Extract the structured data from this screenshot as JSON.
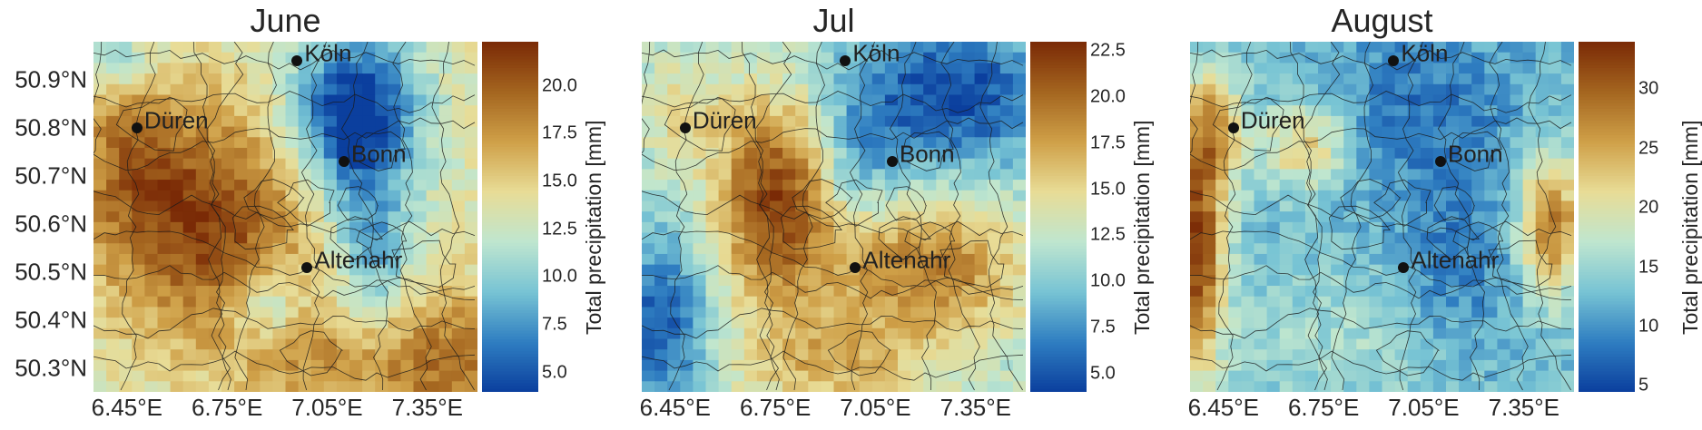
{
  "lon_ticks": [
    "6.45°E",
    "6.75°E",
    "7.05°E",
    "7.35°E"
  ],
  "lat_ticks": [
    "50.9°N",
    "50.8°N",
    "50.7°N",
    "50.6°N",
    "50.5°N",
    "50.4°N",
    "50.3°N"
  ],
  "colorbar_label": "Total precipitation [mm]",
  "cities": [
    {
      "name": "Köln",
      "lon": 6.96,
      "lat": 50.94
    },
    {
      "name": "Düren",
      "lon": 6.48,
      "lat": 50.8
    },
    {
      "name": "Bonn",
      "lon": 7.1,
      "lat": 50.73
    },
    {
      "name": "Altenahr",
      "lon": 6.99,
      "lat": 50.51
    }
  ],
  "colormap": {
    "name": "RdYlBu-like (blue low, brown high)",
    "stops": [
      "#0b3f9e",
      "#2f7ec1",
      "#78c4d4",
      "#bfe6cf",
      "#e8dc96",
      "#cfa048",
      "#a4651f",
      "#7a2a06"
    ]
  },
  "panels": [
    {
      "title": "June",
      "colorbar": {
        "min": 4.0,
        "max": 22.3,
        "ticks": [
          "5.0",
          "7.5",
          "10.0",
          "12.5",
          "15.0",
          "17.5",
          "20.0"
        ]
      },
      "pattern": "wet west-center, dry northeast",
      "show_lat_ticks": true
    },
    {
      "title": "Jul",
      "colorbar": {
        "min": 4.0,
        "max": 23.0,
        "ticks": [
          "5.0",
          "7.5",
          "10.0",
          "12.5",
          "15.0",
          "17.5",
          "20.0",
          "22.5"
        ]
      },
      "pattern": "wet west-center and south-east, dry north",
      "show_lat_ticks": false
    },
    {
      "title": "August",
      "colorbar": {
        "min": 4.5,
        "max": 34.0,
        "ticks": [
          "5",
          "10",
          "15",
          "20",
          "25",
          "30"
        ]
      },
      "pattern": "wet edges west/east, dry center",
      "show_lat_ticks": false
    }
  ]
}
